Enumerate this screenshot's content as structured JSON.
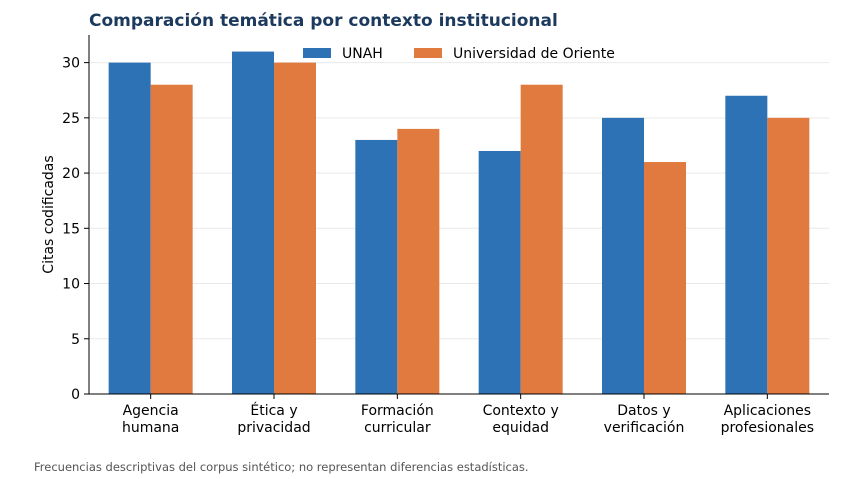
{
  "chart_data": {
    "type": "bar",
    "title": "Comparación temática por contexto institucional",
    "ylabel": "Citas codificadas",
    "xlabel": "",
    "categories": [
      [
        "Agencia",
        "humana"
      ],
      [
        "Ética y",
        "privacidad"
      ],
      [
        "Formación",
        "curricular"
      ],
      [
        "Contexto y",
        "equidad"
      ],
      [
        "Datos y",
        "verificación"
      ],
      [
        "Aplicaciones",
        "profesionales"
      ]
    ],
    "series": [
      {
        "name": "UNAH",
        "color": "#2e72b6",
        "values": [
          30,
          31,
          23,
          22,
          25,
          27
        ]
      },
      {
        "name": "Universidad de Oriente",
        "color": "#e07a3e",
        "values": [
          28,
          30,
          24,
          28,
          21,
          25
        ]
      }
    ],
    "ylim": [
      0,
      32.5
    ],
    "yticks": [
      0,
      5,
      10,
      15,
      20,
      25,
      30
    ],
    "grid": true,
    "legend_position": "top-center",
    "title_color": "#1c3a5e"
  },
  "footnote": "Frecuencias descriptivas del corpus sintético; no representan diferencias estadísticas."
}
